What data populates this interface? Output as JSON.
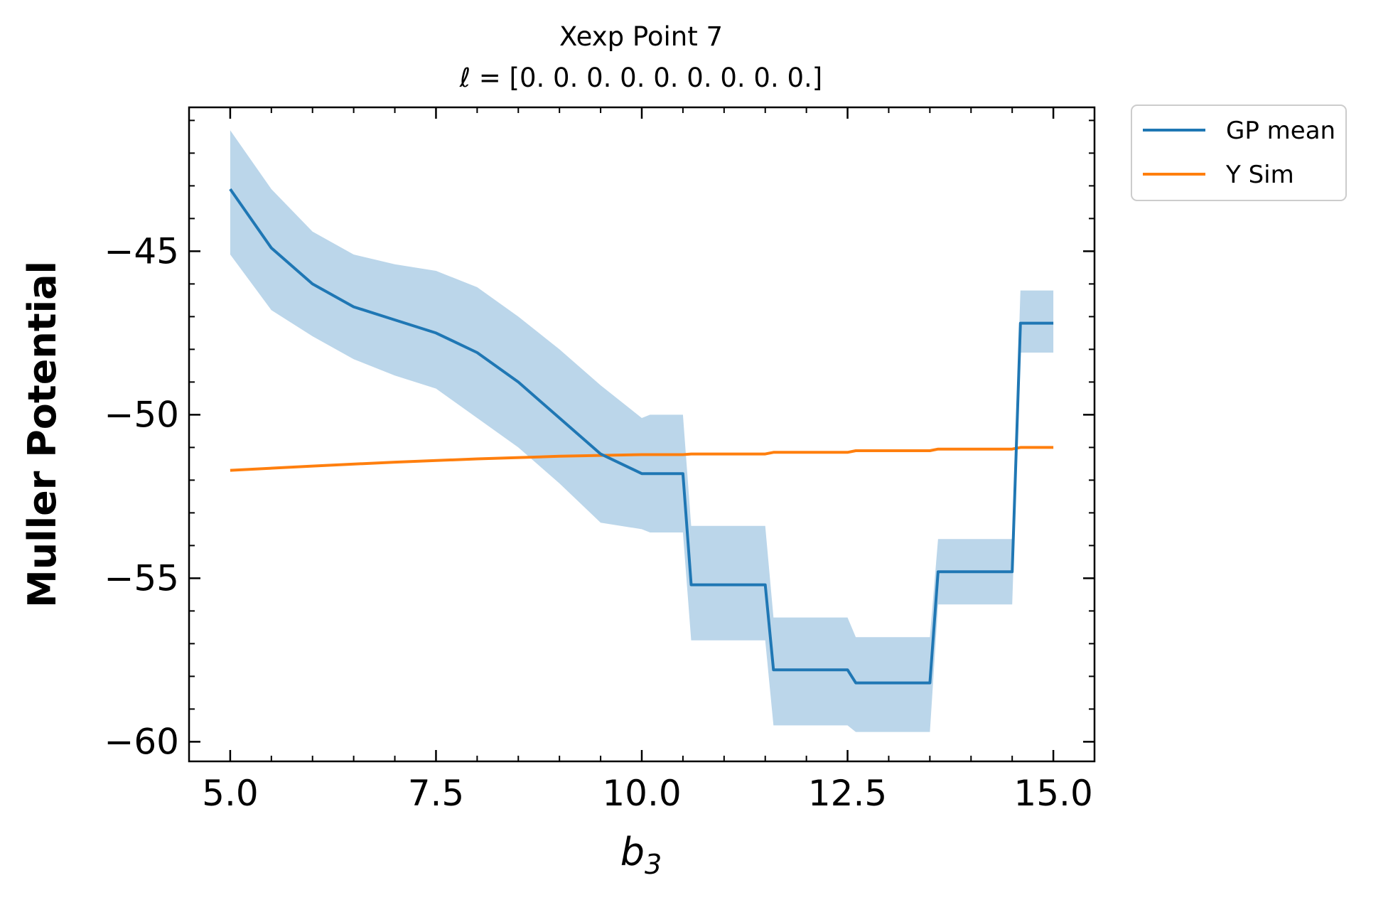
{
  "chart_data": {
    "type": "line",
    "title": "Xexp Point 7",
    "subtitle": "ℓ = [0. 0. 0. 0. 0. 0. 0. 0. 0.]",
    "xlabel": "b",
    "xlabel_sub": "3",
    "ylabel": "Muller Potential",
    "xlim": [
      4.5,
      15.5
    ],
    "ylim": [
      -60.6,
      -40.6
    ],
    "x_ticks": [
      5.0,
      7.5,
      10.0,
      12.5,
      15.0
    ],
    "x_tick_labels": [
      "5.0",
      "7.5",
      "10.0",
      "12.5",
      "15.0"
    ],
    "y_ticks": [
      -45,
      -50,
      -55,
      -60
    ],
    "y_tick_labels": [
      "−45",
      "−50",
      "−55",
      "−60"
    ],
    "grid": false,
    "legend_position": "outside-top-right",
    "colors": {
      "gp_mean": "#1f77b4",
      "y_sim": "#ff7f0e",
      "band": "#bbd6ea"
    },
    "series": [
      {
        "name": "GP mean",
        "x": [
          5.0,
          5.5,
          6.0,
          6.5,
          7.0,
          7.5,
          8.0,
          8.5,
          9.0,
          9.5,
          10.0,
          10.1,
          10.5,
          10.6,
          11.5,
          11.6,
          12.5,
          12.6,
          13.5,
          13.6,
          14.5,
          14.6,
          15.0
        ],
        "values": [
          -43.1,
          -44.9,
          -46.0,
          -46.7,
          -47.1,
          -47.5,
          -48.1,
          -49.0,
          -50.1,
          -51.2,
          -51.8,
          -51.8,
          -51.8,
          -55.2,
          -55.2,
          -57.8,
          -57.8,
          -58.2,
          -58.2,
          -54.8,
          -54.8,
          -47.2,
          -47.2
        ]
      },
      {
        "name": "Y Sim",
        "x": [
          5.0,
          6.0,
          7.0,
          8.0,
          9.0,
          10.0,
          10.5,
          10.6,
          11.5,
          11.6,
          12.5,
          12.6,
          13.5,
          13.6,
          14.5,
          14.6,
          15.0
        ],
        "values": [
          -51.7,
          -51.57,
          -51.45,
          -51.35,
          -51.27,
          -51.22,
          -51.22,
          -51.2,
          -51.2,
          -51.15,
          -51.15,
          -51.1,
          -51.1,
          -51.05,
          -51.05,
          -51.0,
          -51.0
        ]
      }
    ],
    "confidence_band": {
      "x": [
        5.0,
        5.5,
        6.0,
        6.5,
        7.0,
        7.5,
        8.0,
        8.5,
        9.0,
        9.5,
        10.0,
        10.1,
        10.5,
        10.6,
        11.5,
        11.6,
        12.5,
        12.6,
        13.5,
        13.6,
        14.5,
        14.6,
        15.0
      ],
      "upper": [
        -41.3,
        -43.1,
        -44.4,
        -45.1,
        -45.4,
        -45.6,
        -46.1,
        -47.0,
        -48.0,
        -49.1,
        -50.1,
        -50.0,
        -50.0,
        -53.4,
        -53.4,
        -56.2,
        -56.2,
        -56.8,
        -56.8,
        -53.8,
        -53.8,
        -46.2,
        -46.2
      ],
      "lower": [
        -45.1,
        -46.8,
        -47.6,
        -48.3,
        -48.8,
        -49.2,
        -50.1,
        -51.0,
        -52.1,
        -53.3,
        -53.5,
        -53.6,
        -53.6,
        -56.9,
        -56.9,
        -59.5,
        -59.5,
        -59.7,
        -59.7,
        -55.8,
        -55.8,
        -48.1,
        -48.1
      ]
    }
  }
}
